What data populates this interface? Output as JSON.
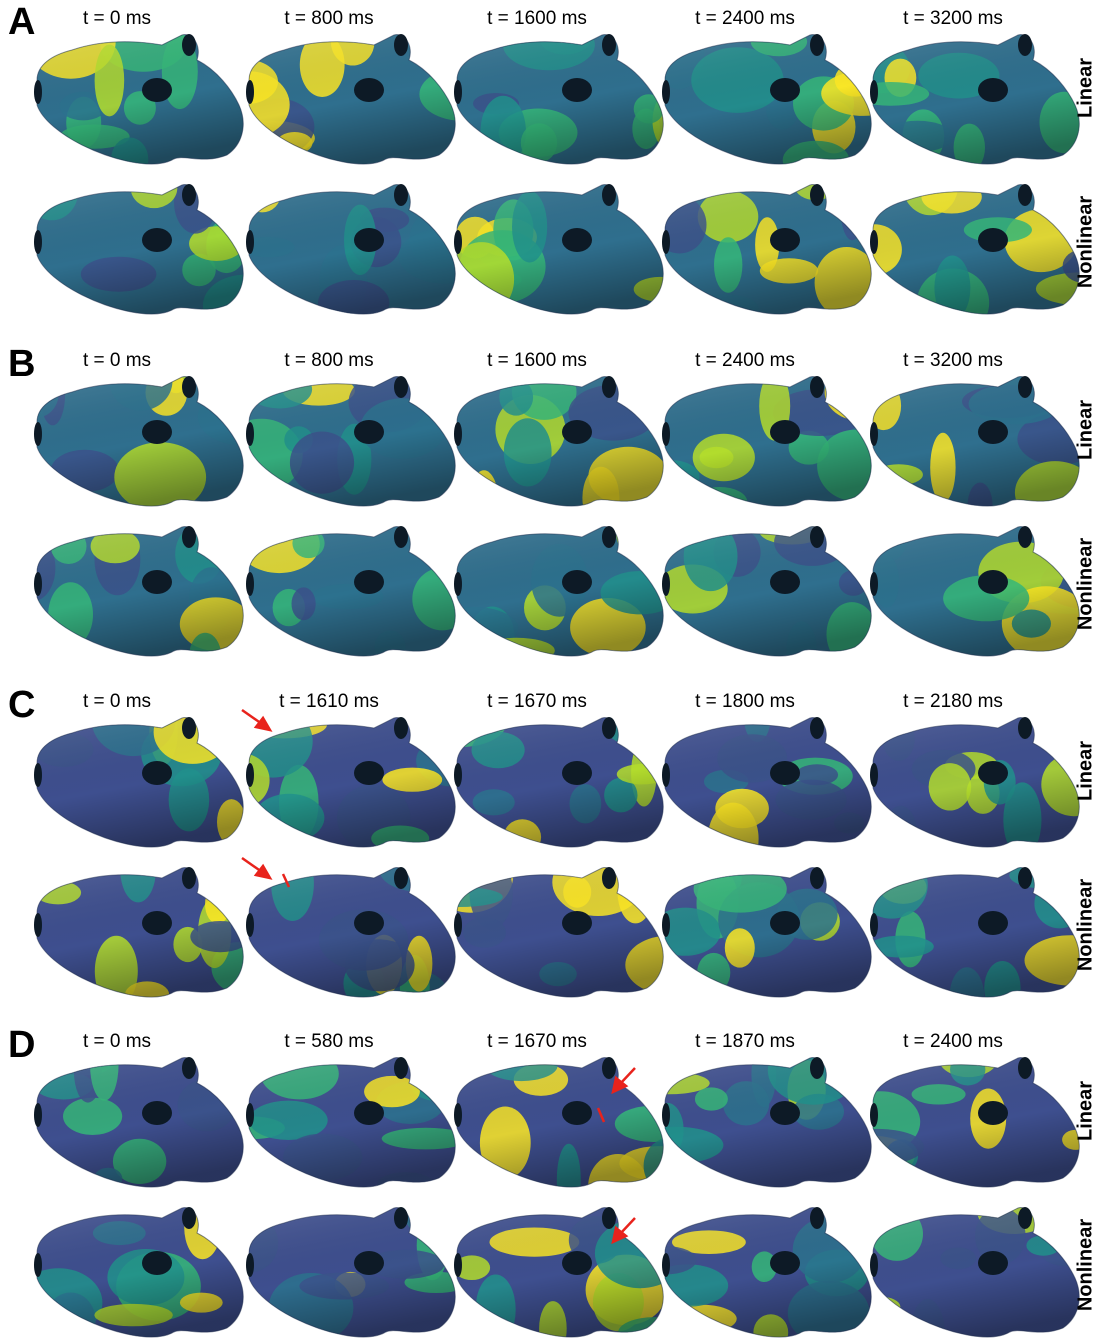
{
  "panels": [
    {
      "label": "A",
      "times": [
        "t = 0 ms",
        "t = 800 ms",
        "t = 1600 ms",
        "t = 2400 ms",
        "t = 3200 ms"
      ],
      "rows": [
        "Linear",
        "Nonlinear"
      ]
    },
    {
      "label": "B",
      "times": [
        "t = 0 ms",
        "t = 800 ms",
        "t = 1600 ms",
        "t = 2400 ms",
        "t = 3200 ms"
      ],
      "rows": [
        "Linear",
        "Nonlinear"
      ]
    },
    {
      "label": "C",
      "times": [
        "t = 0 ms",
        "t = 1610 ms",
        "t = 1670 ms",
        "t = 1800 ms",
        "t = 2180 ms"
      ],
      "rows": [
        "Linear",
        "Nonlinear"
      ]
    },
    {
      "label": "D",
      "times": [
        "t = 0 ms",
        "t = 580 ms",
        "t = 1670 ms",
        "t = 1870 ms",
        "t = 2400 ms"
      ],
      "rows": [
        "Linear",
        "Nonlinear"
      ]
    }
  ]
}
